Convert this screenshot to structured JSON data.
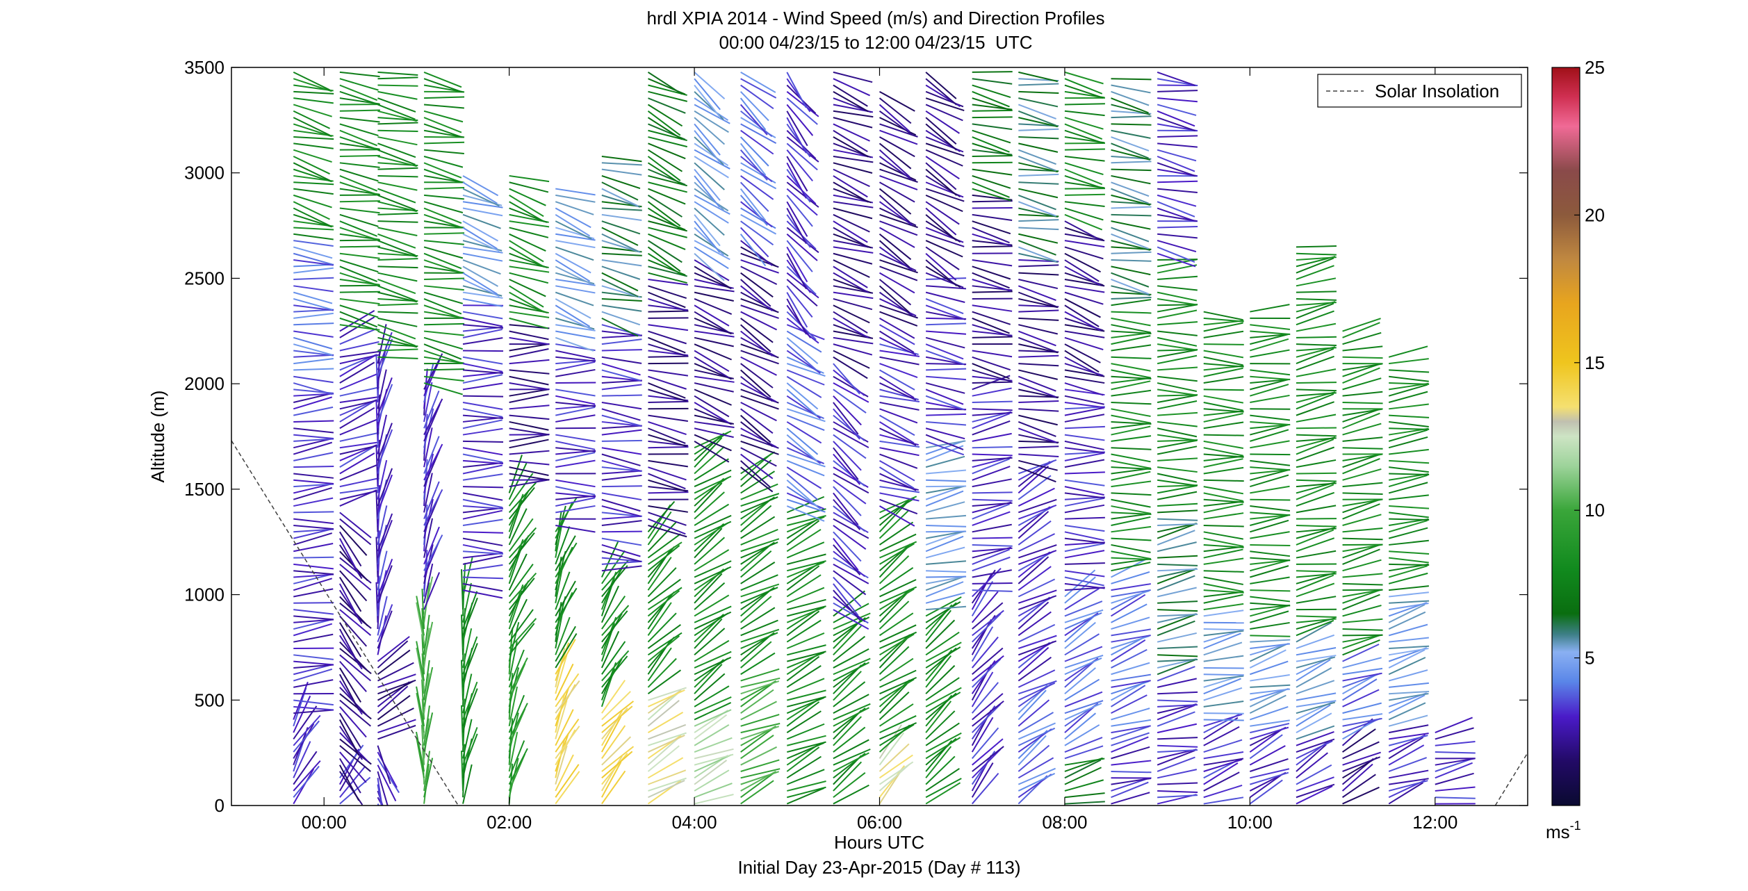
{
  "chart_data": {
    "type": "vector-profile",
    "title": "hrdl XPIA 2014 - Wind Speed (m/s) and Direction Profiles",
    "subtitle": "00:00 04/23/15 to 12:00 04/23/15  UTC",
    "xlabel": "Hours UTC",
    "xlabel2": "Initial Day 23-Apr-2015 (Day # 113)",
    "ylabel": "Altitude (m)",
    "xlim": [
      -1.0,
      13.0
    ],
    "ylim": [
      0,
      3500
    ],
    "x_ticks": [
      {
        "value": 0,
        "label": "00:00"
      },
      {
        "value": 2,
        "label": "02:00"
      },
      {
        "value": 4,
        "label": "04:00"
      },
      {
        "value": 6,
        "label": "06:00"
      },
      {
        "value": 8,
        "label": "08:00"
      },
      {
        "value": 10,
        "label": "10:00"
      },
      {
        "value": 12,
        "label": "12:00"
      }
    ],
    "y_ticks": [
      {
        "value": 0,
        "label": "0"
      },
      {
        "value": 500,
        "label": "500"
      },
      {
        "value": 1000,
        "label": "1000"
      },
      {
        "value": 1500,
        "label": "1500"
      },
      {
        "value": 2000,
        "label": "2000"
      },
      {
        "value": 2500,
        "label": "2500"
      },
      {
        "value": 3000,
        "label": "3000"
      },
      {
        "value": 3500,
        "label": "3500"
      }
    ],
    "legend": {
      "entry": "Solar Insolation",
      "placement": "top-right",
      "style": "dashed"
    },
    "solar_insolation": {
      "segment1": [
        [
          -1.0,
          1730
        ],
        [
          1.45,
          0
        ]
      ],
      "segment2": [
        [
          12.65,
          0
        ],
        [
          13.0,
          250
        ]
      ]
    },
    "colorbar": {
      "range": [
        0,
        25
      ],
      "tick_labels": [
        {
          "value": 5,
          "label": "5"
        },
        {
          "value": 10,
          "label": "10"
        },
        {
          "value": 15,
          "label": "15"
        },
        {
          "value": 20,
          "label": "20"
        },
        {
          "value": 25,
          "label": "25"
        }
      ],
      "unit_label": "ms",
      "unit_exponent": "-1"
    },
    "profiles": [
      {
        "time": -0.33,
        "top": 3500,
        "regimes": [
          [
            0,
            420,
            3,
            30
          ],
          [
            420,
            2000,
            3,
            85
          ],
          [
            2000,
            2700,
            4,
            95
          ],
          [
            2700,
            3500,
            8,
            105
          ]
        ]
      },
      {
        "time": 0.17,
        "top": 3500,
        "regimes": [
          [
            0,
            150,
            3,
            40
          ],
          [
            150,
            1400,
            2,
            140
          ],
          [
            1400,
            2250,
            3,
            70
          ],
          [
            2250,
            3500,
            8,
            100
          ]
        ]
      },
      {
        "time": 0.58,
        "top": 3500,
        "regimes": [
          [
            0,
            300,
            3,
            160
          ],
          [
            300,
            700,
            2,
            60
          ],
          [
            700,
            2100,
            3,
            10
          ],
          [
            2100,
            3500,
            8,
            100
          ]
        ]
      },
      {
        "time": 1.08,
        "top": 3500,
        "regimes": [
          [
            0,
            900,
            10,
            0
          ],
          [
            900,
            2000,
            3,
            15
          ],
          [
            2000,
            3500,
            8,
            100
          ]
        ]
      },
      {
        "time": 1.5,
        "top": 3000,
        "regimes": [
          [
            0,
            1000,
            8,
            10
          ],
          [
            1000,
            2400,
            3,
            90
          ],
          [
            2400,
            3000,
            5,
            110
          ]
        ]
      },
      {
        "time": 2.0,
        "top": 3000,
        "regimes": [
          [
            0,
            700,
            9,
            15
          ],
          [
            700,
            1500,
            8,
            30
          ],
          [
            1500,
            2300,
            2,
            90
          ],
          [
            2300,
            3000,
            8,
            110
          ]
        ]
      },
      {
        "time": 2.5,
        "top": 2950,
        "regimes": [
          [
            0,
            650,
            14,
            25
          ],
          [
            650,
            1300,
            8,
            20
          ],
          [
            1300,
            2200,
            3,
            90
          ],
          [
            2200,
            2950,
            5,
            110
          ]
        ]
      },
      {
        "time": 3.0,
        "top": 3100,
        "regimes": [
          [
            0,
            450,
            14,
            40
          ],
          [
            450,
            1100,
            8,
            30
          ],
          [
            1100,
            2300,
            3,
            95
          ],
          [
            2300,
            3100,
            6,
            105
          ]
        ]
      },
      {
        "time": 3.5,
        "top": 3500,
        "regimes": [
          [
            0,
            500,
            13,
            60
          ],
          [
            500,
            1300,
            8,
            45
          ],
          [
            1300,
            2500,
            2,
            100
          ],
          [
            2500,
            3500,
            7,
            115
          ]
        ]
      },
      {
        "time": 4.0,
        "top": 3500,
        "regimes": [
          [
            0,
            400,
            12,
            65
          ],
          [
            400,
            1700,
            8,
            55
          ],
          [
            1700,
            2600,
            2,
            110
          ],
          [
            2600,
            3500,
            5,
            130
          ]
        ]
      },
      {
        "time": 4.5,
        "top": 3500,
        "regimes": [
          [
            0,
            600,
            10,
            65
          ],
          [
            600,
            1600,
            8,
            60
          ],
          [
            1600,
            2700,
            2,
            120
          ],
          [
            2700,
            3500,
            4,
            130
          ]
        ]
      },
      {
        "time": 5.0,
        "top": 3500,
        "regimes": [
          [
            0,
            1400,
            8,
            65
          ],
          [
            1400,
            2300,
            4,
            120
          ],
          [
            2300,
            3500,
            3,
            140
          ]
        ]
      },
      {
        "time": 5.5,
        "top": 3500,
        "regimes": [
          [
            0,
            900,
            8,
            55
          ],
          [
            900,
            2100,
            3,
            130
          ],
          [
            2100,
            3500,
            2,
            110
          ]
        ]
      },
      {
        "time": 6.0,
        "top": 3400,
        "regimes": [
          [
            0,
            250,
            13,
            45
          ],
          [
            250,
            1400,
            8,
            55
          ],
          [
            1400,
            2300,
            3,
            110
          ],
          [
            2300,
            3400,
            2,
            120
          ]
        ]
      },
      {
        "time": 6.5,
        "top": 3500,
        "regimes": [
          [
            0,
            900,
            8,
            50
          ],
          [
            900,
            1700,
            5,
            80
          ],
          [
            1700,
            2500,
            3,
            100
          ],
          [
            2500,
            3500,
            2,
            120
          ]
        ]
      },
      {
        "time": 7.0,
        "top": 3500,
        "regimes": [
          [
            0,
            1000,
            3,
            40
          ],
          [
            1000,
            2000,
            3,
            80
          ],
          [
            2000,
            2900,
            2,
            100
          ],
          [
            2900,
            3500,
            7,
            100
          ]
        ]
      },
      {
        "time": 7.5,
        "top": 3500,
        "regimes": [
          [
            0,
            500,
            4,
            55
          ],
          [
            500,
            1600,
            3,
            60
          ],
          [
            1600,
            2600,
            2,
            100
          ],
          [
            2600,
            3500,
            6,
            100
          ]
        ]
      },
      {
        "time": 8.0,
        "top": 3500,
        "regimes": [
          [
            0,
            200,
            7,
            75
          ],
          [
            200,
            1000,
            4,
            60
          ],
          [
            1000,
            2000,
            3,
            90
          ],
          [
            2000,
            2800,
            2,
            110
          ],
          [
            2800,
            3500,
            8,
            100
          ]
        ]
      },
      {
        "time": 8.5,
        "top": 3450,
        "regimes": [
          [
            0,
            300,
            3,
            80
          ],
          [
            300,
            1100,
            4,
            70
          ],
          [
            1100,
            2400,
            8,
            90
          ],
          [
            2400,
            3450,
            6,
            100
          ]
        ]
      },
      {
        "time": 9.0,
        "top": 3500,
        "regimes": [
          [
            0,
            600,
            3,
            80
          ],
          [
            600,
            1400,
            6,
            80
          ],
          [
            1400,
            2600,
            8,
            90
          ],
          [
            2600,
            3500,
            3,
            100
          ]
        ]
      },
      {
        "time": 9.5,
        "top": 2350,
        "regimes": [
          [
            0,
            400,
            3,
            70
          ],
          [
            400,
            900,
            5,
            80
          ],
          [
            900,
            2350,
            8,
            90
          ]
        ]
      },
      {
        "time": 10.0,
        "top": 2350,
        "regimes": [
          [
            0,
            350,
            3,
            65
          ],
          [
            350,
            800,
            5,
            75
          ],
          [
            800,
            2350,
            8,
            85
          ]
        ]
      },
      {
        "time": 10.5,
        "top": 2650,
        "regimes": [
          [
            0,
            300,
            3,
            60
          ],
          [
            300,
            800,
            5,
            70
          ],
          [
            800,
            2650,
            8,
            80
          ]
        ]
      },
      {
        "time": 11.0,
        "top": 2250,
        "regimes": [
          [
            0,
            300,
            2,
            60
          ],
          [
            300,
            700,
            4,
            70
          ],
          [
            700,
            2250,
            8,
            80
          ]
        ]
      },
      {
        "time": 11.5,
        "top": 2150,
        "regimes": [
          [
            0,
            350,
            3,
            70
          ],
          [
            350,
            1000,
            5,
            75
          ],
          [
            1000,
            2150,
            8,
            85
          ]
        ]
      },
      {
        "time": 12.0,
        "top": 350,
        "regimes": [
          [
            0,
            350,
            3,
            80
          ]
        ]
      }
    ]
  }
}
